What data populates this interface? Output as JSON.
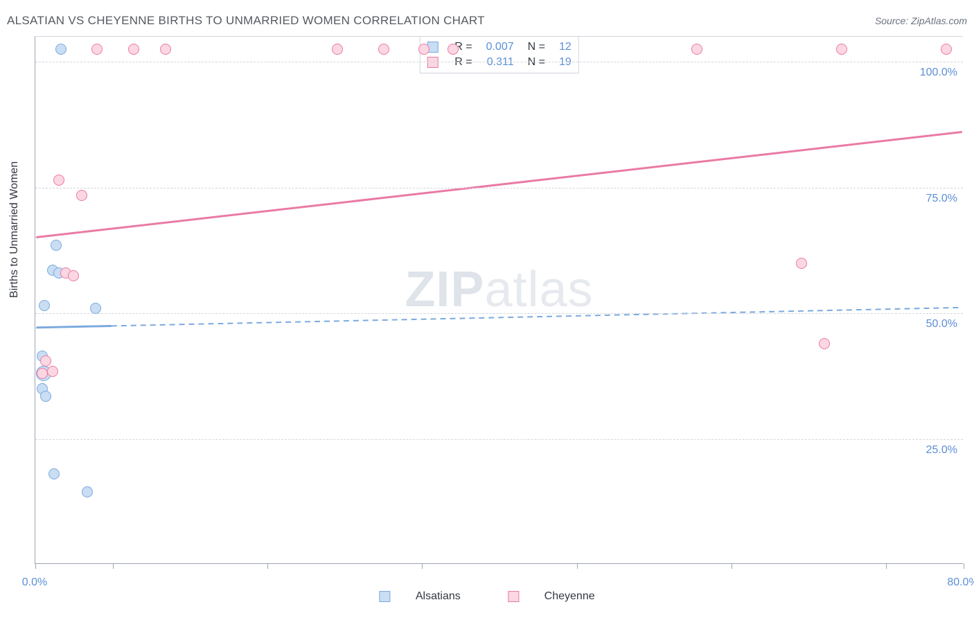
{
  "header": {
    "title": "ALSATIAN VS CHEYENNE BIRTHS TO UNMARRIED WOMEN CORRELATION CHART",
    "source_prefix": "Source: ",
    "source_name": "ZipAtlas.com"
  },
  "y_axis": {
    "label": "Births to Unmarried Women"
  },
  "watermark": {
    "part1": "ZIP",
    "part2": "atlas"
  },
  "chart": {
    "type": "scatter-correlation",
    "background_color": "#ffffff",
    "grid_color": "#d1d5db",
    "axis_color": "#9ca3af",
    "label_color": "#5b8fd6",
    "text_color": "#333740",
    "title_fontsize": 17,
    "label_fontsize": 16,
    "xlim": [
      0,
      80
    ],
    "ylim": [
      0,
      105
    ],
    "x_ticks": [
      0,
      6.7,
      20,
      33.3,
      46.7,
      60,
      73.3,
      80
    ],
    "x_tick_labels": {
      "0": "0.0%",
      "80": "80.0%"
    },
    "y_ticks": [
      25,
      50,
      75,
      100
    ],
    "y_tick_labels": {
      "25": "25.0%",
      "50": "50.0%",
      "75": "75.0%",
      "100": "100.0%"
    },
    "marker_radius": 8,
    "marker_border_width": 1,
    "series": [
      {
        "name": "Alsatians",
        "color_fill": "#c9ddf3",
        "color_border": "#7aa9de",
        "R": "0.007",
        "N": "12",
        "trend": {
          "y_at_xmin": 47,
          "y_at_xmax": 51,
          "width": 3,
          "solid_until_x": 6.5,
          "dash": "8 6"
        },
        "points": [
          {
            "x": 2.2,
            "y": 102.5,
            "r": 8
          },
          {
            "x": 1.8,
            "y": 63.5,
            "r": 8
          },
          {
            "x": 1.5,
            "y": 58.5,
            "r": 8
          },
          {
            "x": 2.0,
            "y": 58.0,
            "r": 8
          },
          {
            "x": 0.8,
            "y": 51.5,
            "r": 8
          },
          {
            "x": 5.2,
            "y": 51.0,
            "r": 8
          },
          {
            "x": 0.6,
            "y": 41.5,
            "r": 8
          },
          {
            "x": 0.7,
            "y": 38.0,
            "r": 11
          },
          {
            "x": 0.6,
            "y": 35.0,
            "r": 8
          },
          {
            "x": 0.9,
            "y": 33.5,
            "r": 8
          },
          {
            "x": 1.6,
            "y": 18.0,
            "r": 8
          },
          {
            "x": 4.5,
            "y": 14.5,
            "r": 8
          }
        ]
      },
      {
        "name": "Cheyenne",
        "color_fill": "#fbd7e2",
        "color_border": "#ea7aa4",
        "R": "0.311",
        "N": "19",
        "trend": {
          "y_at_xmin": 65,
          "y_at_xmax": 86,
          "width": 3,
          "solid_until_x": 80,
          "dash": ""
        },
        "points": [
          {
            "x": 5.3,
            "y": 102.5,
            "r": 8
          },
          {
            "x": 8.5,
            "y": 102.5,
            "r": 8
          },
          {
            "x": 11.2,
            "y": 102.5,
            "r": 8
          },
          {
            "x": 26.0,
            "y": 102.5,
            "r": 8
          },
          {
            "x": 30.0,
            "y": 102.5,
            "r": 8
          },
          {
            "x": 33.5,
            "y": 102.5,
            "r": 8
          },
          {
            "x": 36.0,
            "y": 102.5,
            "r": 8
          },
          {
            "x": 57.0,
            "y": 102.5,
            "r": 8
          },
          {
            "x": 69.5,
            "y": 102.5,
            "r": 8
          },
          {
            "x": 78.5,
            "y": 102.5,
            "r": 8
          },
          {
            "x": 2.0,
            "y": 76.5,
            "r": 8
          },
          {
            "x": 4.0,
            "y": 73.5,
            "r": 8
          },
          {
            "x": 66.0,
            "y": 60.0,
            "r": 8
          },
          {
            "x": 2.6,
            "y": 58.0,
            "r": 8
          },
          {
            "x": 3.3,
            "y": 57.5,
            "r": 8
          },
          {
            "x": 68.0,
            "y": 44.0,
            "r": 8
          },
          {
            "x": 0.9,
            "y": 40.5,
            "r": 8
          },
          {
            "x": 1.5,
            "y": 38.5,
            "r": 8
          },
          {
            "x": 0.6,
            "y": 38.0,
            "r": 8
          }
        ]
      }
    ],
    "legend_top": {
      "R_label": "R =",
      "N_label": "N ="
    },
    "legend_bottom": {
      "items": [
        "Alsatians",
        "Cheyenne"
      ]
    }
  }
}
